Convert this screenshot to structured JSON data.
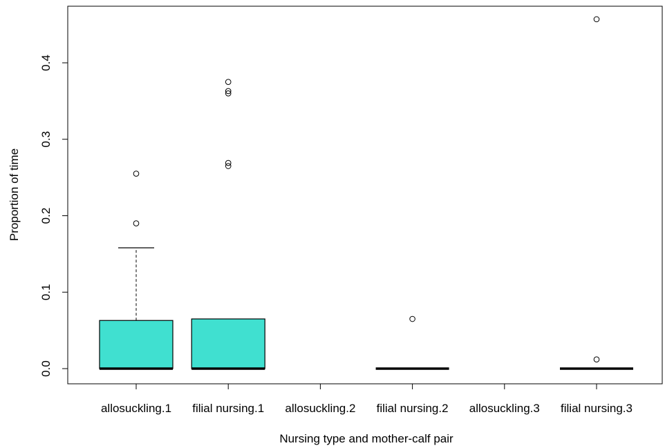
{
  "chart_data": {
    "type": "boxplot",
    "title": "",
    "xlabel": "Nursing type and mother-calf pair",
    "ylabel": "Proportion of time",
    "ylim": [
      -0.02,
      0.465
    ],
    "yticks": [
      0.0,
      0.1,
      0.2,
      0.3,
      0.4
    ],
    "ytick_labels": [
      "0.0",
      "0.1",
      "0.2",
      "0.3",
      "0.4"
    ],
    "grid": false,
    "box_color": "#40E0D0",
    "categories": [
      "allosuckling.1",
      "filial nursing.1",
      "allosuckling.2",
      "filial nursing.2",
      "allosuckling.3",
      "filial nursing.3"
    ],
    "boxes": [
      {
        "category": "allosuckling.1",
        "min": 0.0,
        "q1": 0.0,
        "median": 0.0,
        "q3": 0.063,
        "whisker_high": 0.158,
        "outliers": [
          0.19,
          0.255
        ]
      },
      {
        "category": "filial nursing.1",
        "min": 0.0,
        "q1": 0.0,
        "median": 0.0,
        "q3": 0.065,
        "whisker_high": 0.065,
        "outliers": [
          0.265,
          0.269,
          0.36,
          0.363,
          0.375
        ]
      },
      {
        "category": "allosuckling.2",
        "min": null,
        "q1": null,
        "median": null,
        "q3": null,
        "whisker_high": null,
        "outliers": []
      },
      {
        "category": "filial nursing.2",
        "min": 0.0,
        "q1": 0.0,
        "median": 0.0,
        "q3": 0.0,
        "whisker_high": 0.0,
        "outliers": [
          0.065
        ]
      },
      {
        "category": "allosuckling.3",
        "min": null,
        "q1": null,
        "median": null,
        "q3": null,
        "whisker_high": null,
        "outliers": []
      },
      {
        "category": "filial nursing.3",
        "min": 0.0,
        "q1": 0.0,
        "median": 0.0,
        "q3": 0.0,
        "whisker_high": 0.0,
        "outliers": [
          0.012,
          0.457
        ]
      }
    ]
  }
}
